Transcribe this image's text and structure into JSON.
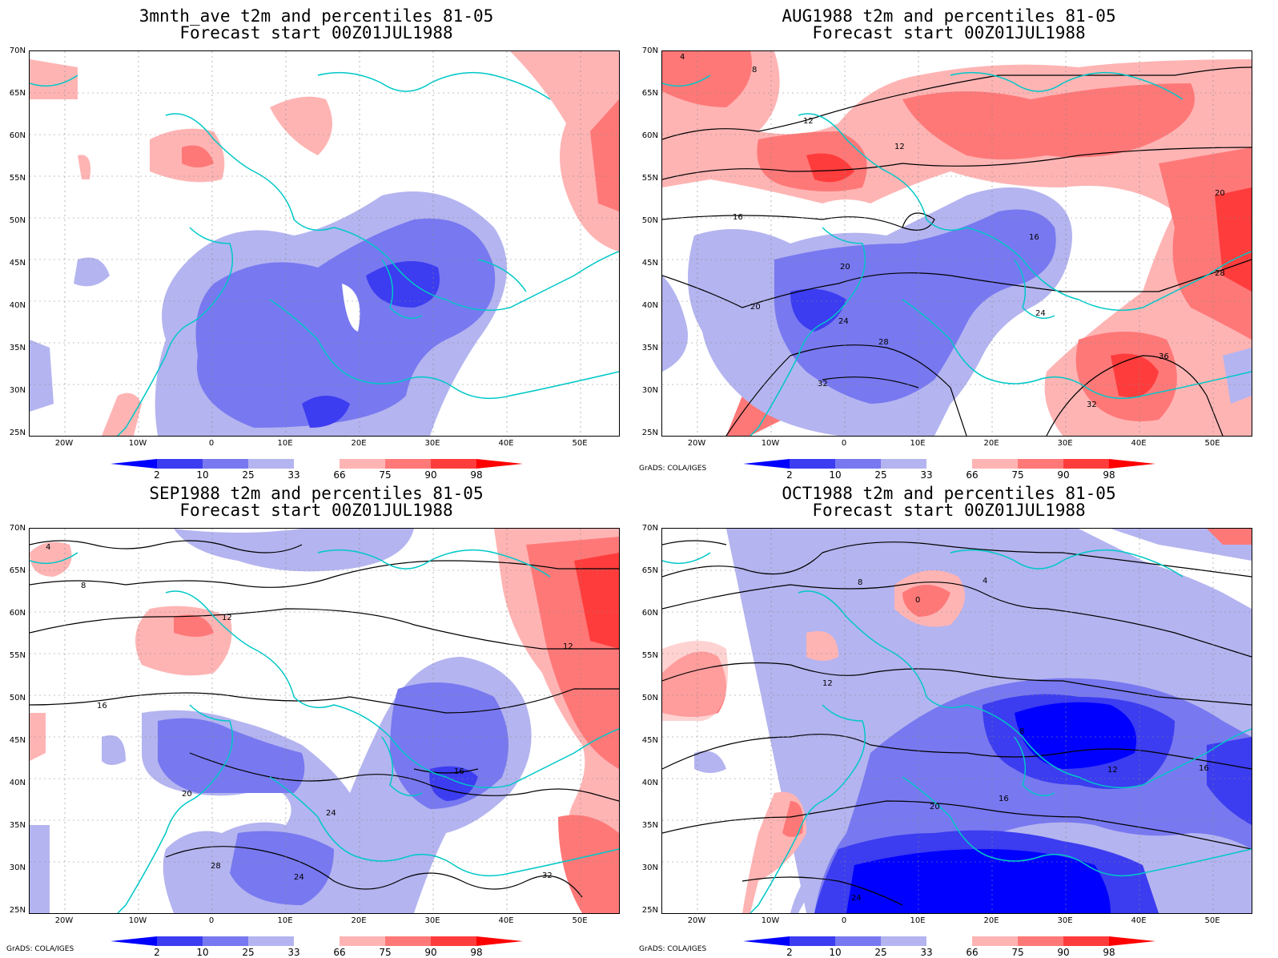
{
  "panels": [
    {
      "title": "3mnth_ave t2m and percentiles 81-05",
      "subtitle": "Forecast start 00Z01JUL1988",
      "credit": ""
    },
    {
      "title": "AUG1988 t2m and percentiles 81-05",
      "subtitle": "Forecast start 00Z01JUL1988",
      "credit": "GrADS: COLA/IGES"
    },
    {
      "title": "SEP1988 t2m and percentiles 81-05",
      "subtitle": "Forecast start 00Z01JUL1988",
      "credit": "GrADS: COLA/IGES"
    },
    {
      "title": "OCT1988 t2m and percentiles 81-05",
      "subtitle": "Forecast start 00Z01JUL1988",
      "credit": "GrADS: COLA/IGES"
    }
  ],
  "lat_labels": [
    "70N",
    "65N",
    "60N",
    "55N",
    "50N",
    "45N",
    "40N",
    "35N",
    "30N",
    "25N"
  ],
  "lon_labels": [
    "20W",
    "10W",
    "0",
    "10E",
    "20E",
    "30E",
    "40E",
    "50E"
  ],
  "legend": {
    "labels": [
      "2",
      "10",
      "25",
      "33",
      "66",
      "75",
      "90",
      "98"
    ],
    "colors": [
      "#0000ff",
      "#3c3cf0",
      "#7878f0",
      "#b4b4f0",
      "#ffffff",
      "#ffb4b4",
      "#ff7878",
      "#ff3c3c",
      "#ff0000"
    ]
  },
  "contour_labels": {
    "p2": [
      "4",
      "8",
      "12",
      "12",
      "16",
      "16",
      "20",
      "20",
      "20",
      "24",
      "24",
      "28",
      "32",
      "36",
      "28",
      "32"
    ],
    "p3": [
      "4",
      "8",
      "12",
      "12",
      "16",
      "16",
      "20",
      "24",
      "28",
      "24",
      "32"
    ],
    "p4": [
      "0",
      "4",
      "8",
      "12",
      "16",
      "20",
      "24",
      "8",
      "12",
      "16"
    ]
  }
}
